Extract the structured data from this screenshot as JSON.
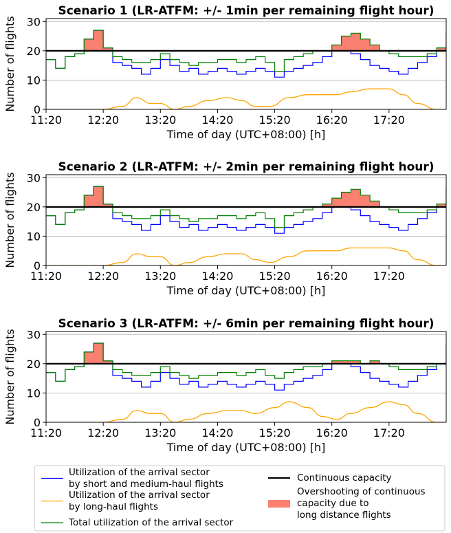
{
  "chart_data": [
    {
      "type": "line",
      "title": "Scenario 1 (LR-ATFM: +/- 1min per remaining flight hour)",
      "xlabel": "Time of day (UTC+08:00) [h]",
      "ylabel": "Number of flights",
      "xticks": [
        "11:20",
        "12:20",
        "13:20",
        "14:20",
        "15:20",
        "16:20",
        "17:20"
      ],
      "xlim": [
        "11:20",
        "18:20"
      ],
      "yticks": [
        0,
        10,
        20,
        30
      ],
      "ylim": [
        0,
        31
      ],
      "capacity": 20,
      "grid": "horizontal",
      "series": [
        {
          "name": "Utilization of the arrival sector by short and medium-haul flights",
          "color": "#0000ff",
          "style": "step",
          "x": [
            "11:20",
            "11:30",
            "11:40",
            "11:50",
            "12:00",
            "12:10",
            "12:20",
            "12:30",
            "12:40",
            "12:50",
            "13:00",
            "13:10",
            "13:20",
            "13:30",
            "13:40",
            "13:50",
            "14:00",
            "14:10",
            "14:20",
            "14:30",
            "14:40",
            "14:50",
            "15:00",
            "15:10",
            "15:20",
            "15:30",
            "15:40",
            "15:50",
            "16:00",
            "16:10",
            "16:20",
            "16:30",
            "16:40",
            "16:50",
            "17:00",
            "17:10",
            "17:20",
            "17:30",
            "17:40",
            "17:50",
            "18:00",
            "18:10",
            "18:20"
          ],
          "values": [
            17,
            14,
            18,
            19,
            24,
            27,
            21,
            16,
            15,
            14,
            12,
            14,
            17,
            15,
            13,
            14,
            12,
            13,
            14,
            13,
            12,
            13,
            14,
            13,
            11,
            13,
            14,
            15,
            16,
            18,
            20,
            20,
            19,
            17,
            15,
            14,
            13,
            12,
            14,
            16,
            18,
            20,
            26
          ]
        },
        {
          "name": "Utilization of the arrival sector by long-haul flights",
          "color": "#ffa500",
          "style": "smooth",
          "x": [
            "11:20",
            "12:00",
            "12:20",
            "12:40",
            "12:55",
            "13:10",
            "13:20",
            "13:35",
            "13:50",
            "14:10",
            "14:30",
            "14:45",
            "15:00",
            "15:15",
            "15:35",
            "15:55",
            "16:10",
            "16:25",
            "16:40",
            "17:00",
            "17:20",
            "17:35",
            "17:50",
            "18:10",
            "18:20"
          ],
          "values": [
            0,
            0,
            0,
            1,
            4,
            2,
            2,
            0,
            1,
            3,
            4,
            3,
            1,
            1,
            4,
            5,
            5,
            5,
            6,
            7,
            7,
            5,
            2,
            0,
            0
          ]
        },
        {
          "name": "Total utilization of the arrival sector",
          "color": "#008000",
          "style": "step",
          "x": [
            "11:20",
            "11:30",
            "11:40",
            "11:50",
            "12:00",
            "12:10",
            "12:20",
            "12:30",
            "12:40",
            "12:50",
            "13:00",
            "13:10",
            "13:20",
            "13:30",
            "13:40",
            "13:50",
            "14:00",
            "14:10",
            "14:20",
            "14:30",
            "14:40",
            "14:50",
            "15:00",
            "15:10",
            "15:20",
            "15:30",
            "15:40",
            "15:50",
            "16:00",
            "16:10",
            "16:20",
            "16:30",
            "16:40",
            "16:50",
            "17:00",
            "17:10",
            "17:20",
            "17:30",
            "17:40",
            "17:50",
            "18:00",
            "18:10",
            "18:20"
          ],
          "values": [
            17,
            14,
            18,
            19,
            24,
            27,
            21,
            18,
            17,
            16,
            16,
            17,
            19,
            17,
            16,
            15,
            16,
            16,
            17,
            17,
            16,
            17,
            18,
            16,
            13,
            17,
            18,
            19,
            20,
            20,
            22,
            25,
            26,
            24,
            22,
            20,
            19,
            18,
            18,
            18,
            19,
            21,
            27
          ]
        }
      ]
    },
    {
      "type": "line",
      "title": "Scenario 2 (LR-ATFM: +/- 2min per remaining flight hour)",
      "xlabel": "Time of day (UTC+08:00) [h]",
      "ylabel": "Number of flights",
      "xticks": [
        "11:20",
        "12:20",
        "13:20",
        "14:20",
        "15:20",
        "16:20",
        "17:20"
      ],
      "xlim": [
        "11:20",
        "18:20"
      ],
      "yticks": [
        0,
        10,
        20,
        30
      ],
      "ylim": [
        0,
        31
      ],
      "capacity": 20,
      "grid": "horizontal",
      "series": [
        {
          "name": "Utilization of the arrival sector by short and medium-haul flights",
          "color": "#0000ff",
          "style": "step",
          "x": [
            "11:20",
            "11:30",
            "11:40",
            "11:50",
            "12:00",
            "12:10",
            "12:20",
            "12:30",
            "12:40",
            "12:50",
            "13:00",
            "13:10",
            "13:20",
            "13:30",
            "13:40",
            "13:50",
            "14:00",
            "14:10",
            "14:20",
            "14:30",
            "14:40",
            "14:50",
            "15:00",
            "15:10",
            "15:20",
            "15:30",
            "15:40",
            "15:50",
            "16:00",
            "16:10",
            "16:20",
            "16:30",
            "16:40",
            "16:50",
            "17:00",
            "17:10",
            "17:20",
            "17:30",
            "17:40",
            "17:50",
            "18:00",
            "18:10",
            "18:20"
          ],
          "values": [
            17,
            14,
            18,
            19,
            24,
            27,
            21,
            16,
            15,
            14,
            12,
            14,
            17,
            15,
            13,
            14,
            12,
            13,
            14,
            13,
            12,
            13,
            14,
            13,
            11,
            13,
            14,
            15,
            16,
            18,
            20,
            20,
            19,
            17,
            15,
            14,
            13,
            12,
            14,
            16,
            18,
            20,
            26
          ]
        },
        {
          "name": "Utilization of the arrival sector by long-haul flights",
          "color": "#ffa500",
          "style": "smooth",
          "x": [
            "11:20",
            "12:00",
            "12:20",
            "12:40",
            "12:55",
            "13:10",
            "13:20",
            "13:35",
            "13:50",
            "14:10",
            "14:30",
            "14:45",
            "15:00",
            "15:15",
            "15:35",
            "15:55",
            "16:10",
            "16:25",
            "16:40",
            "17:00",
            "17:20",
            "17:35",
            "17:50",
            "18:10",
            "18:20"
          ],
          "values": [
            0,
            0,
            0,
            1,
            4,
            3,
            3,
            0,
            1,
            3,
            4,
            4,
            2,
            1,
            3,
            5,
            5,
            5,
            6,
            6,
            6,
            5,
            2,
            0,
            0
          ]
        },
        {
          "name": "Total utilization of the arrival sector",
          "color": "#008000",
          "style": "step",
          "x": [
            "11:20",
            "11:30",
            "11:40",
            "11:50",
            "12:00",
            "12:10",
            "12:20",
            "12:30",
            "12:40",
            "12:50",
            "13:00",
            "13:10",
            "13:20",
            "13:30",
            "13:40",
            "13:50",
            "14:00",
            "14:10",
            "14:20",
            "14:30",
            "14:40",
            "14:50",
            "15:00",
            "15:10",
            "15:20",
            "15:30",
            "15:40",
            "15:50",
            "16:00",
            "16:10",
            "16:20",
            "16:30",
            "16:40",
            "16:50",
            "17:00",
            "17:10",
            "17:20",
            "17:30",
            "17:40",
            "17:50",
            "18:00",
            "18:10",
            "18:20"
          ],
          "values": [
            17,
            14,
            18,
            19,
            24,
            27,
            21,
            18,
            17,
            16,
            16,
            17,
            19,
            17,
            16,
            15,
            16,
            16,
            17,
            17,
            16,
            17,
            18,
            16,
            13,
            17,
            18,
            19,
            20,
            21,
            23,
            25,
            26,
            24,
            22,
            20,
            19,
            18,
            18,
            18,
            19,
            21,
            27
          ]
        }
      ]
    },
    {
      "type": "line",
      "title": "Scenario 3 (LR-ATFM: +/- 6min per remaining flight hour)",
      "xlabel": "Time of day (UTC+08:00) [h]",
      "ylabel": "Number of flights",
      "xticks": [
        "11:20",
        "12:20",
        "13:20",
        "14:20",
        "15:20",
        "16:20",
        "17:20"
      ],
      "xlim": [
        "11:20",
        "18:20"
      ],
      "yticks": [
        0,
        10,
        20,
        30
      ],
      "ylim": [
        0,
        31
      ],
      "capacity": 20,
      "grid": "horizontal",
      "series": [
        {
          "name": "Utilization of the arrival sector by short and medium-haul flights",
          "color": "#0000ff",
          "style": "step",
          "x": [
            "11:20",
            "11:30",
            "11:40",
            "11:50",
            "12:00",
            "12:10",
            "12:20",
            "12:30",
            "12:40",
            "12:50",
            "13:00",
            "13:10",
            "13:20",
            "13:30",
            "13:40",
            "13:50",
            "14:00",
            "14:10",
            "14:20",
            "14:30",
            "14:40",
            "14:50",
            "15:00",
            "15:10",
            "15:20",
            "15:30",
            "15:40",
            "15:50",
            "16:00",
            "16:10",
            "16:20",
            "16:30",
            "16:40",
            "16:50",
            "17:00",
            "17:10",
            "17:20",
            "17:30",
            "17:40",
            "17:50",
            "18:00",
            "18:10",
            "18:20"
          ],
          "values": [
            17,
            14,
            18,
            19,
            24,
            27,
            21,
            16,
            15,
            14,
            12,
            14,
            17,
            15,
            13,
            14,
            12,
            13,
            14,
            13,
            12,
            13,
            14,
            13,
            11,
            13,
            14,
            15,
            16,
            18,
            20,
            20,
            19,
            17,
            15,
            14,
            13,
            12,
            14,
            16,
            18,
            20,
            26
          ]
        },
        {
          "name": "Utilization of the arrival sector by long-haul flights",
          "color": "#ffa500",
          "style": "smooth",
          "x": [
            "11:20",
            "12:00",
            "12:20",
            "12:40",
            "12:55",
            "13:10",
            "13:20",
            "13:35",
            "13:50",
            "14:10",
            "14:30",
            "14:45",
            "15:00",
            "15:20",
            "15:35",
            "15:55",
            "16:10",
            "16:25",
            "16:40",
            "17:00",
            "17:20",
            "17:35",
            "17:50",
            "18:10",
            "18:20"
          ],
          "values": [
            0,
            0,
            0,
            1,
            4,
            3,
            3,
            0,
            1,
            3,
            4,
            4,
            3,
            5,
            7,
            5,
            2,
            1,
            3,
            5,
            7,
            6,
            3,
            0,
            0
          ]
        },
        {
          "name": "Total utilization of the arrival sector",
          "color": "#008000",
          "style": "step",
          "x": [
            "11:20",
            "11:30",
            "11:40",
            "11:50",
            "12:00",
            "12:10",
            "12:20",
            "12:30",
            "12:40",
            "12:50",
            "13:00",
            "13:10",
            "13:20",
            "13:30",
            "13:40",
            "13:50",
            "14:00",
            "14:10",
            "14:20",
            "14:30",
            "14:40",
            "14:50",
            "15:00",
            "15:10",
            "15:20",
            "15:30",
            "15:40",
            "15:50",
            "16:00",
            "16:10",
            "16:20",
            "16:30",
            "16:40",
            "16:50",
            "17:00",
            "17:10",
            "17:20",
            "17:30",
            "17:40",
            "17:50",
            "18:00",
            "18:10",
            "18:20"
          ],
          "values": [
            17,
            14,
            18,
            19,
            24,
            27,
            21,
            18,
            17,
            16,
            16,
            17,
            19,
            17,
            16,
            15,
            16,
            16,
            17,
            17,
            16,
            17,
            18,
            16,
            15,
            17,
            18,
            19,
            19,
            20,
            21,
            21,
            21,
            20,
            21,
            20,
            19,
            18,
            18,
            18,
            19,
            20,
            27
          ]
        }
      ]
    }
  ],
  "legend": {
    "items": [
      {
        "label": "Utilization of the arrival sector by short and medium-haul flights",
        "lines": [
          "Utilization of the arrival sector",
          "by short and medium-haul flights"
        ],
        "kind": "line",
        "color": "#0000ff"
      },
      {
        "label": "Utilization of the arrival sector by long-haul flights",
        "lines": [
          "Utilization of the arrival sector",
          "by long-haul flights"
        ],
        "kind": "line",
        "color": "#ffa500"
      },
      {
        "label": "Total utilization of the arrival sector",
        "lines": [
          "Total utilization of the arrival sector"
        ],
        "kind": "line",
        "color": "#008000"
      },
      {
        "label": "Continuous capacity",
        "lines": [
          "Continuous capacity"
        ],
        "kind": "line",
        "color": "#000000"
      },
      {
        "label": "Overshooting of continuous capacity due to long distance flights",
        "lines": [
          "Overshooting of continuous",
          "capacity due to",
          "long distance flights"
        ],
        "kind": "patch",
        "color": "#fa8072"
      }
    ]
  }
}
